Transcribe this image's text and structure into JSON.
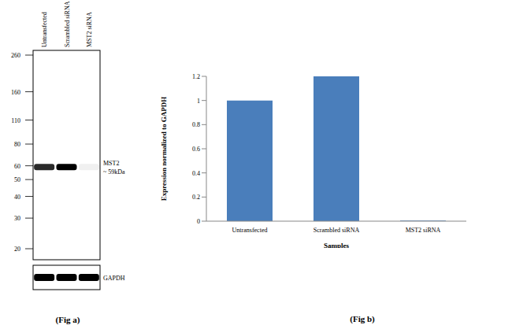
{
  "blot": {
    "lanes": [
      "Untransfected",
      "Scrambled siRNA",
      "MST2 siRNA"
    ],
    "markers_kda": [
      260,
      160,
      110,
      80,
      60,
      50,
      40,
      30,
      20
    ],
    "band": {
      "name": "MST2",
      "label": "~ 59kDa",
      "kda": 59
    },
    "loading_control": "GAPDH",
    "caption": "(Fig a)"
  },
  "chart_data": {
    "type": "bar",
    "x_label": "Samples",
    "y_label": "Expression normalized to GAPDH",
    "categories": [
      "Untransfected",
      "Scrambled siRNA",
      "MST2 siRNA"
    ],
    "values": [
      1,
      1.2,
      0.005
    ],
    "color": "#4a7ebb",
    "ylim": [
      0,
      1.2
    ],
    "yticks": [
      0,
      0.2,
      0.4,
      0.6,
      0.8,
      1,
      1.2
    ],
    "grid": false,
    "annotations": [
      "(Fig b)"
    ]
  }
}
